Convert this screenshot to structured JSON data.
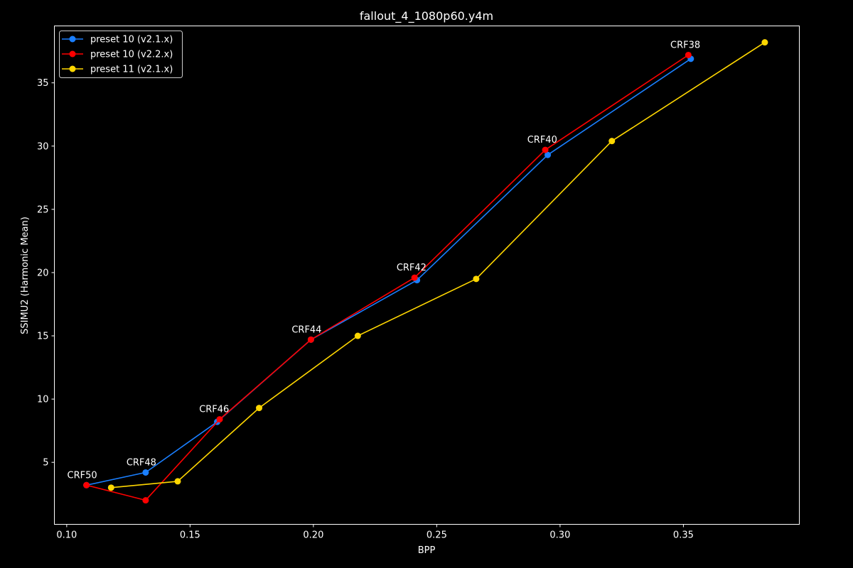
{
  "chart_data": {
    "type": "line",
    "title": "fallout_4_1080p60.y4m",
    "xlabel": "BPP",
    "ylabel": "SSIMU2 (Harmonic Mean)",
    "xlim": [
      0.095,
      0.397
    ],
    "ylim": [
      0.1,
      39.5
    ],
    "xticks": [
      0.1,
      0.15,
      0.2,
      0.25,
      0.3,
      0.35
    ],
    "xtick_labels": [
      "0.10",
      "0.15",
      "0.20",
      "0.25",
      "0.30",
      "0.35"
    ],
    "yticks": [
      5,
      10,
      15,
      20,
      25,
      30,
      35
    ],
    "ytick_labels": [
      "5",
      "10",
      "15",
      "20",
      "25",
      "30",
      "35"
    ],
    "grid": false,
    "legend_position": "top-left",
    "series": [
      {
        "name": "preset 10 (v2.1.x)",
        "color": "#1a7fff",
        "x": [
          0.108,
          0.132,
          0.161,
          0.199,
          0.242,
          0.295,
          0.353
        ],
        "y": [
          3.2,
          4.2,
          8.2,
          14.7,
          19.4,
          29.3,
          36.9
        ]
      },
      {
        "name": "preset 10 (v2.2.x)",
        "color": "#ff0000",
        "x": [
          0.108,
          0.132,
          0.162,
          0.199,
          0.241,
          0.294,
          0.352
        ],
        "y": [
          3.2,
          2.0,
          8.4,
          14.7,
          19.6,
          29.7,
          37.2
        ]
      },
      {
        "name": "preset 11 (v2.1.x)",
        "color": "#ffd700",
        "x": [
          0.118,
          0.145,
          0.178,
          0.218,
          0.266,
          0.321,
          0.383
        ],
        "y": [
          3.0,
          3.5,
          9.3,
          15.0,
          19.5,
          30.4,
          38.2
        ]
      }
    ],
    "annotations": [
      {
        "text": "CRF50",
        "x": 0.108,
        "y": 3.2
      },
      {
        "text": "CRF48",
        "x": 0.132,
        "y": 4.2
      },
      {
        "text": "CRF46",
        "x": 0.1615,
        "y": 8.4
      },
      {
        "text": "CRF44",
        "x": 0.199,
        "y": 14.7
      },
      {
        "text": "CRF42",
        "x": 0.2415,
        "y": 19.6
      },
      {
        "text": "CRF40",
        "x": 0.2945,
        "y": 29.7
      },
      {
        "text": "CRF38",
        "x": 0.3525,
        "y": 37.2
      }
    ]
  }
}
